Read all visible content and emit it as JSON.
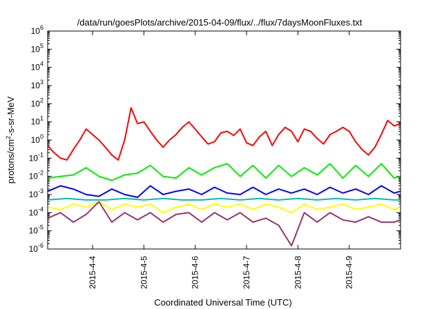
{
  "chart_data": {
    "type": "line",
    "title": "/data/run/goesPlots/archive/2015-04-09/flux/../flux/7daysMoonFluxes.txt",
    "xlabel": "Coordinated Universal Time (UTC)",
    "ylabel": "protons/cm^2-s-sr-MeV",
    "y_scale": "log",
    "ylim": [
      1e-06,
      1000000.0
    ],
    "y_tick_exponents": [
      -6,
      -5,
      -4,
      -3,
      -2,
      -1,
      0,
      1,
      2,
      3,
      4,
      5,
      6
    ],
    "xlim": [
      "2015-04-03 03:00",
      "2015-04-10 00:00"
    ],
    "x_ticks": [
      "2015-4-4",
      "2015-4-5",
      "2015-4-6",
      "2015-4-7",
      "2015-4-8",
      "2015-4-9"
    ],
    "grid": false,
    "legend": "none",
    "series": [
      {
        "color": "#ff0000",
        "x": [
          "2015-04-03 03:00",
          "2015-04-03 06:00",
          "2015-04-03 09:00",
          "2015-04-03 12:00",
          "2015-04-03 15:00",
          "2015-04-03 18:00",
          "2015-04-03 21:00",
          "2015-04-04 00:00",
          "2015-04-04 03:00",
          "2015-04-04 06:00",
          "2015-04-04 09:00",
          "2015-04-04 12:00",
          "2015-04-04 15:00",
          "2015-04-04 18:00",
          "2015-04-04 21:00",
          "2015-04-05 00:00",
          "2015-04-05 03:00",
          "2015-04-05 06:00",
          "2015-04-05 09:00",
          "2015-04-05 12:00",
          "2015-04-05 15:00",
          "2015-04-05 18:00",
          "2015-04-05 21:00",
          "2015-04-06 00:00",
          "2015-04-06 03:00",
          "2015-04-06 06:00",
          "2015-04-06 09:00",
          "2015-04-06 12:00",
          "2015-04-06 15:00",
          "2015-04-06 18:00",
          "2015-04-06 21:00",
          "2015-04-07 00:00",
          "2015-04-07 03:00",
          "2015-04-07 06:00",
          "2015-04-07 09:00",
          "2015-04-07 12:00",
          "2015-04-07 15:00",
          "2015-04-07 18:00",
          "2015-04-07 21:00",
          "2015-04-08 00:00",
          "2015-04-08 03:00",
          "2015-04-08 06:00",
          "2015-04-08 09:00",
          "2015-04-08 12:00",
          "2015-04-08 15:00",
          "2015-04-08 18:00",
          "2015-04-08 21:00",
          "2015-04-09 00:00",
          "2015-04-09 03:00",
          "2015-04-09 06:00",
          "2015-04-09 09:00",
          "2015-04-09 12:00",
          "2015-04-09 15:00",
          "2015-04-09 18:00",
          "2015-04-09 21:00",
          "2015-04-10 00:00"
        ],
        "values": [
          0.5,
          0.2,
          0.1,
          0.08,
          0.3,
          1.0,
          4.0,
          2.0,
          1.0,
          0.4,
          0.15,
          0.08,
          1.0,
          60,
          8,
          10,
          3,
          1.0,
          0.4,
          1.0,
          2.0,
          5.0,
          10,
          4.0,
          1.5,
          0.6,
          0.8,
          2.5,
          3.0,
          1.8,
          4.0,
          0.7,
          0.5,
          1.5,
          3.0,
          0.5,
          2.0,
          5.0,
          3.0,
          0.8,
          4.0,
          3.0,
          1.2,
          0.6,
          2.0,
          3.0,
          5.0,
          3.0,
          0.8,
          0.3,
          0.15,
          0.4,
          2.0,
          12,
          6,
          8
        ]
      },
      {
        "color": "#00ee00",
        "x": [
          "2015-04-03 03:00",
          "2015-04-03 09:00",
          "2015-04-03 15:00",
          "2015-04-03 21:00",
          "2015-04-04 03:00",
          "2015-04-04 09:00",
          "2015-04-04 15:00",
          "2015-04-04 21:00",
          "2015-04-05 03:00",
          "2015-04-05 09:00",
          "2015-04-05 15:00",
          "2015-04-05 21:00",
          "2015-04-06 03:00",
          "2015-04-06 09:00",
          "2015-04-06 15:00",
          "2015-04-06 21:00",
          "2015-04-07 03:00",
          "2015-04-07 09:00",
          "2015-04-07 15:00",
          "2015-04-07 21:00",
          "2015-04-08 03:00",
          "2015-04-08 09:00",
          "2015-04-08 15:00",
          "2015-04-08 21:00",
          "2015-04-09 03:00",
          "2015-04-09 09:00",
          "2015-04-09 15:00",
          "2015-04-09 21:00",
          "2015-04-10 00:00"
        ],
        "values": [
          0.008,
          0.01,
          0.012,
          0.03,
          0.01,
          0.006,
          0.012,
          0.015,
          0.04,
          0.01,
          0.008,
          0.03,
          0.012,
          0.03,
          0.05,
          0.01,
          0.04,
          0.008,
          0.04,
          0.01,
          0.03,
          0.012,
          0.05,
          0.008,
          0.04,
          0.01,
          0.05,
          0.008,
          0.01
        ]
      },
      {
        "color": "#0000ff",
        "x": [
          "2015-04-03 03:00",
          "2015-04-03 09:00",
          "2015-04-03 15:00",
          "2015-04-03 21:00",
          "2015-04-04 03:00",
          "2015-04-04 09:00",
          "2015-04-04 15:00",
          "2015-04-04 21:00",
          "2015-04-05 03:00",
          "2015-04-05 09:00",
          "2015-04-05 15:00",
          "2015-04-05 21:00",
          "2015-04-06 03:00",
          "2015-04-06 09:00",
          "2015-04-06 15:00",
          "2015-04-06 21:00",
          "2015-04-07 03:00",
          "2015-04-07 09:00",
          "2015-04-07 15:00",
          "2015-04-07 21:00",
          "2015-04-08 03:00",
          "2015-04-08 09:00",
          "2015-04-08 15:00",
          "2015-04-08 21:00",
          "2015-04-09 03:00",
          "2015-04-09 09:00",
          "2015-04-09 15:00",
          "2015-04-09 21:00",
          "2015-04-10 00:00"
        ],
        "values": [
          0.0015,
          0.003,
          0.002,
          0.001,
          0.0008,
          0.002,
          0.001,
          0.0007,
          0.003,
          0.001,
          0.0015,
          0.002,
          0.001,
          0.0025,
          0.0012,
          0.001,
          0.0025,
          0.001,
          0.002,
          0.0012,
          0.002,
          0.001,
          0.0025,
          0.0012,
          0.002,
          0.001,
          0.003,
          0.0012,
          0.0015
        ]
      },
      {
        "color": "#00bbbb",
        "x": [
          "2015-04-03 03:00",
          "2015-04-03 12:00",
          "2015-04-03 21:00",
          "2015-04-04 06:00",
          "2015-04-04 15:00",
          "2015-04-05 00:00",
          "2015-04-05 09:00",
          "2015-04-05 18:00",
          "2015-04-06 03:00",
          "2015-04-06 12:00",
          "2015-04-06 21:00",
          "2015-04-07 06:00",
          "2015-04-07 15:00",
          "2015-04-08 00:00",
          "2015-04-08 09:00",
          "2015-04-08 18:00",
          "2015-04-09 03:00",
          "2015-04-09 12:00",
          "2015-04-09 21:00",
          "2015-04-10 00:00"
        ],
        "values": [
          0.0005,
          0.0006,
          0.0005,
          0.0005,
          0.0006,
          0.0005,
          0.0006,
          0.0005,
          0.0005,
          0.0006,
          0.0005,
          0.0006,
          0.0005,
          0.0006,
          0.0005,
          0.0006,
          0.0005,
          0.0006,
          0.0005,
          0.0005
        ]
      },
      {
        "color": "#ffff00",
        "x": [
          "2015-04-03 03:00",
          "2015-04-03 09:00",
          "2015-04-03 15:00",
          "2015-04-03 21:00",
          "2015-04-04 03:00",
          "2015-04-04 09:00",
          "2015-04-04 15:00",
          "2015-04-04 21:00",
          "2015-04-05 03:00",
          "2015-04-05 09:00",
          "2015-04-05 15:00",
          "2015-04-05 21:00",
          "2015-04-06 03:00",
          "2015-04-06 09:00",
          "2015-04-06 15:00",
          "2015-04-06 21:00",
          "2015-04-07 03:00",
          "2015-04-07 09:00",
          "2015-04-07 15:00",
          "2015-04-07 21:00",
          "2015-04-08 03:00",
          "2015-04-08 09:00",
          "2015-04-08 15:00",
          "2015-04-08 21:00",
          "2015-04-09 03:00",
          "2015-04-09 09:00",
          "2015-04-09 15:00",
          "2015-04-09 21:00",
          "2015-04-10 00:00"
        ],
        "values": [
          0.0002,
          0.00015,
          0.0003,
          0.0002,
          0.0004,
          0.00015,
          0.0003,
          0.0002,
          0.0003,
          0.0001,
          0.0002,
          0.0003,
          0.00015,
          0.0003,
          0.0002,
          0.0003,
          0.00015,
          0.0003,
          0.0002,
          0.0001,
          0.0003,
          0.00015,
          0.0002,
          0.0003,
          0.00015,
          0.0002,
          0.0003,
          0.00015,
          0.0002
        ]
      },
      {
        "color": "#993366",
        "x": [
          "2015-04-03 03:00",
          "2015-04-03 09:00",
          "2015-04-03 15:00",
          "2015-04-03 21:00",
          "2015-04-04 03:00",
          "2015-04-04 09:00",
          "2015-04-04 15:00",
          "2015-04-04 21:00",
          "2015-04-05 03:00",
          "2015-04-05 09:00",
          "2015-04-05 15:00",
          "2015-04-05 21:00",
          "2015-04-06 03:00",
          "2015-04-06 09:00",
          "2015-04-06 15:00",
          "2015-04-06 21:00",
          "2015-04-07 03:00",
          "2015-04-07 09:00",
          "2015-04-07 15:00",
          "2015-04-07 21:00",
          "2015-04-08 03:00",
          "2015-04-08 09:00",
          "2015-04-08 15:00",
          "2015-04-08 21:00",
          "2015-04-09 03:00",
          "2015-04-09 09:00",
          "2015-04-09 15:00",
          "2015-04-09 21:00",
          "2015-04-10 00:00"
        ],
        "values": [
          5e-05,
          0.0001,
          3e-05,
          8e-05,
          0.0004,
          3e-05,
          0.0001,
          4e-05,
          0.0001,
          3e-05,
          8e-05,
          0.0001,
          3e-05,
          0.0001,
          4e-05,
          0.0001,
          3e-05,
          5e-05,
          2e-05,
          1.5e-06,
          0.0001,
          3e-05,
          0.0001,
          4e-05,
          3e-05,
          6e-05,
          3e-05,
          3e-05,
          4e-05
        ]
      }
    ]
  }
}
